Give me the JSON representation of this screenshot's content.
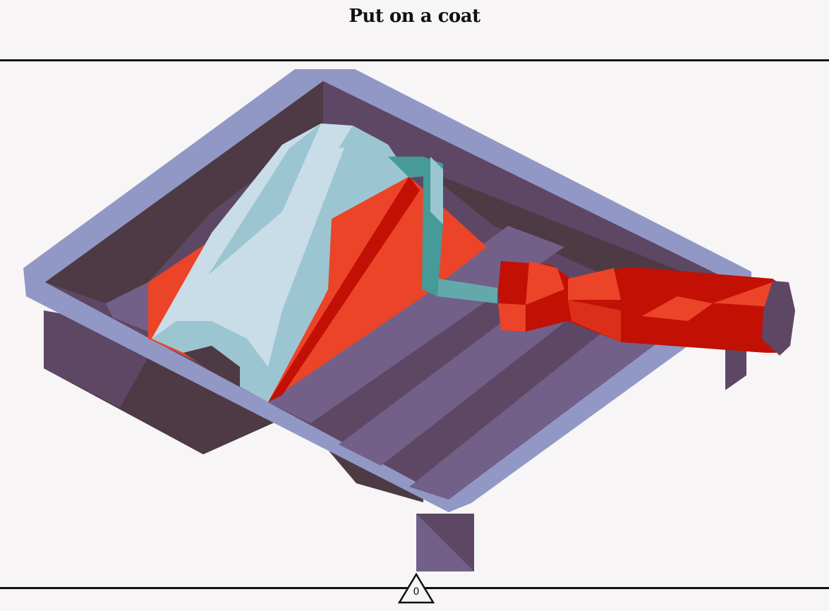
{
  "title": "Put on a coat",
  "counter": "0",
  "colors": {
    "background": "#f7f5f6",
    "tray_rim": "#9298c5",
    "tray_dark": "#4d3a44",
    "tray_purple": "#5e4764",
    "tray_ridge": "#726089",
    "roller_cover": "#c8dde8",
    "roller_cover_shade": "#9cc5d2",
    "roller_frame": "#469a97",
    "paint": "#ec4428",
    "paint_dark": "#c21005",
    "handle_cap": "#5e4764"
  },
  "icons": {
    "counter": "triangle-counter-icon"
  }
}
